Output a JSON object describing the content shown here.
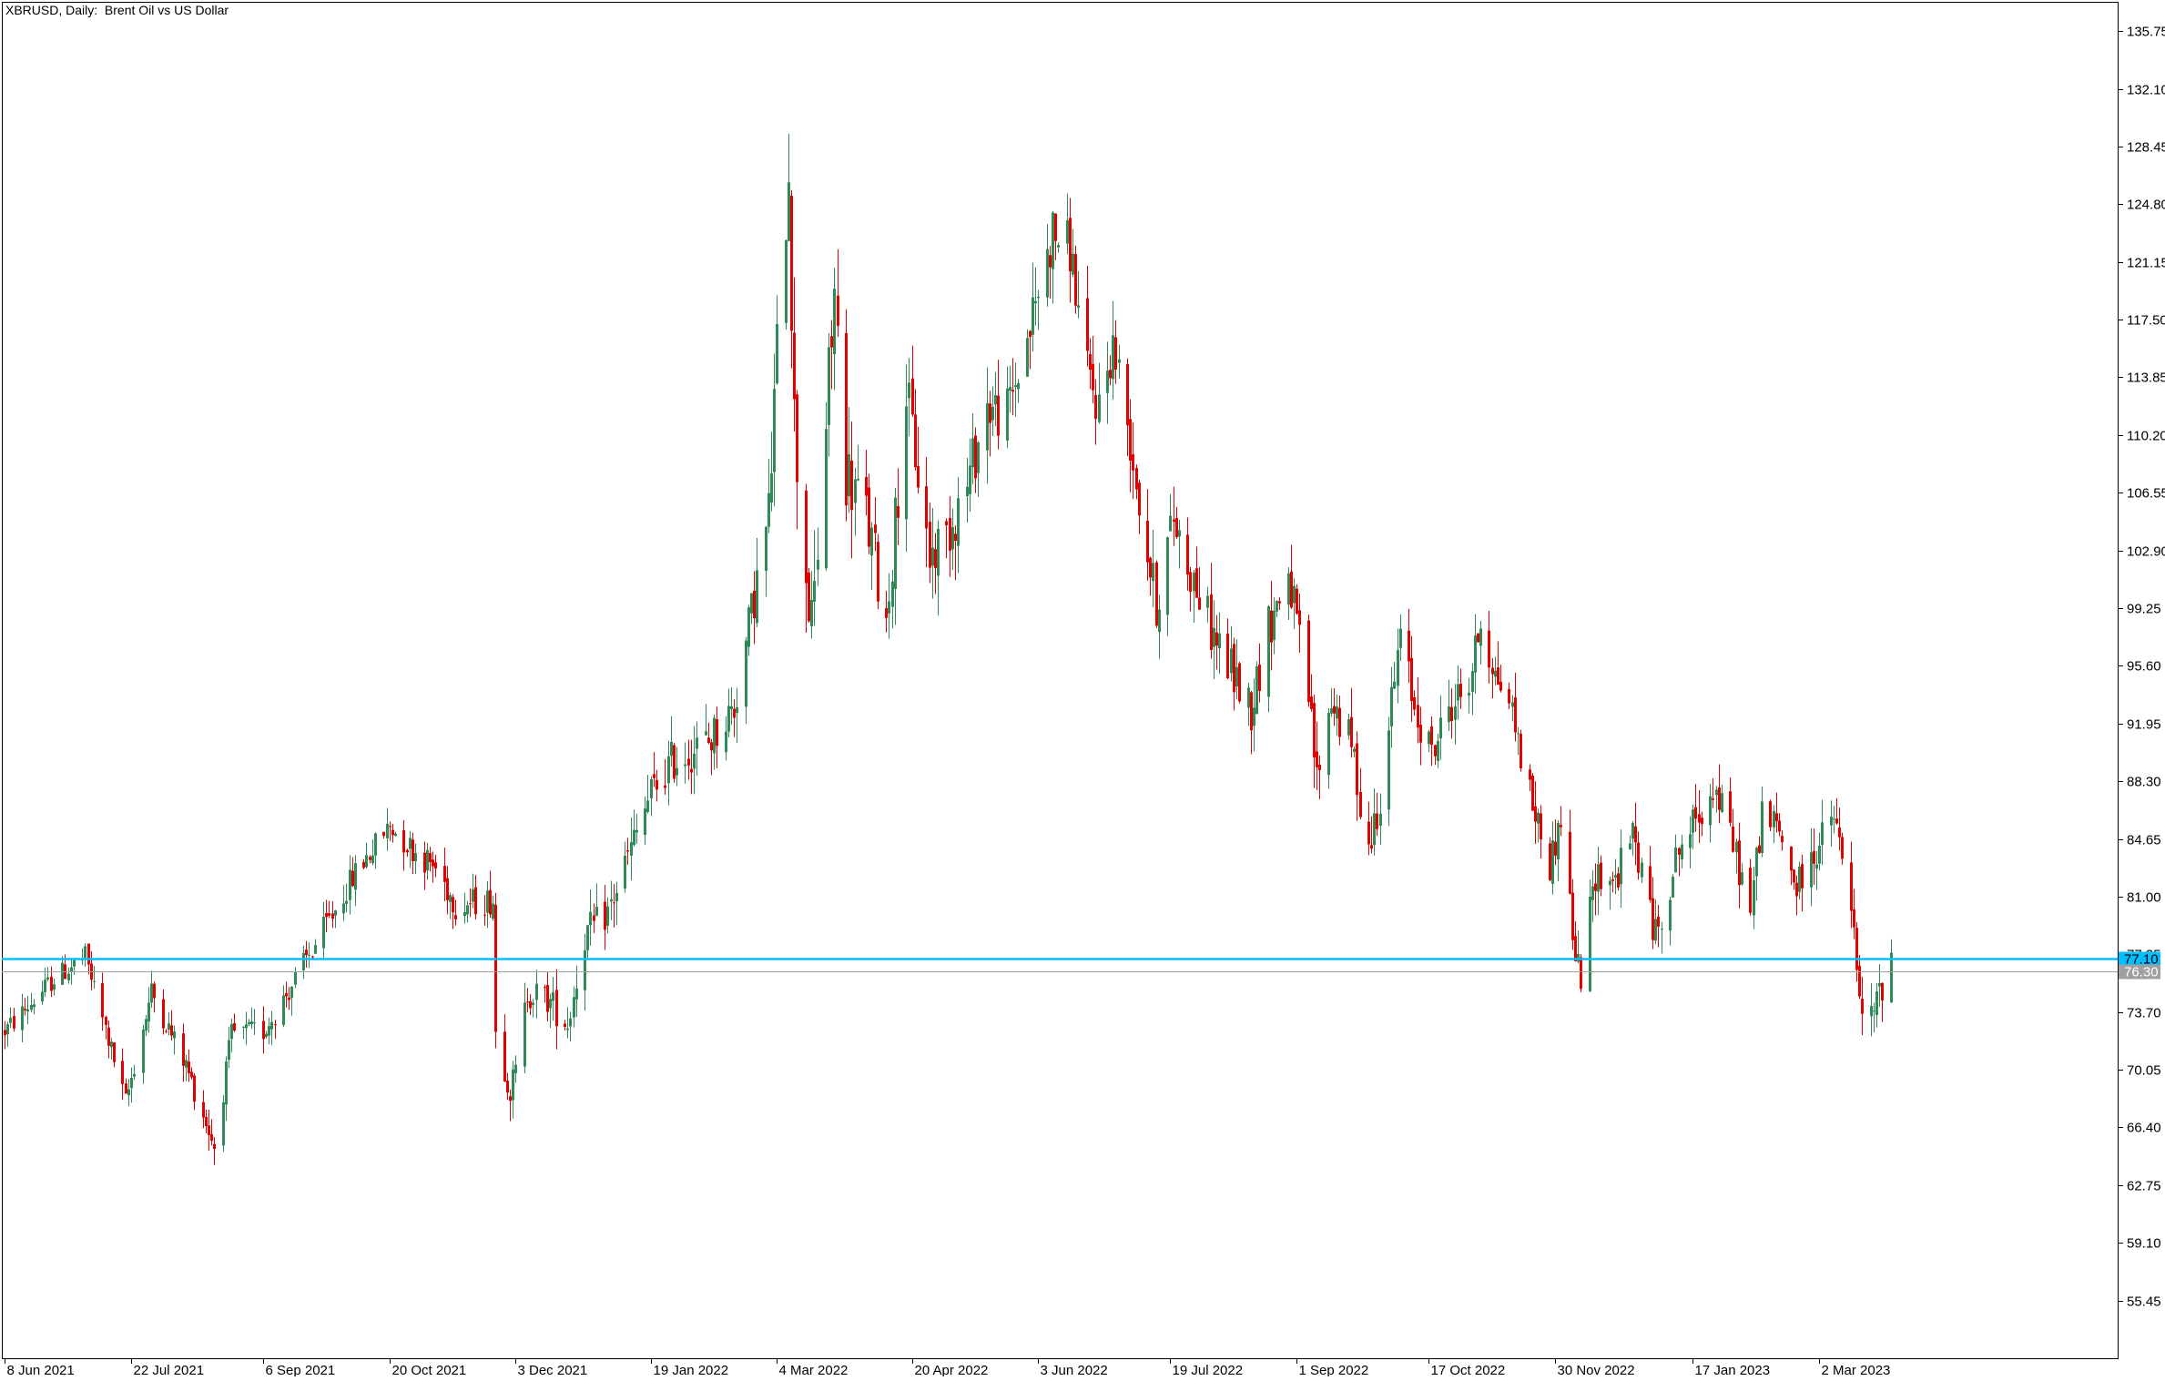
{
  "chart_data": {
    "type": "candlestick",
    "title": "XBRUSD, Daily:  Brent Oil vs US Dollar",
    "xlabel": "",
    "ylabel": "",
    "ylim": [
      51.8,
      137.6
    ],
    "y_ticks": [
      "135.75",
      "132.10",
      "128.45",
      "124.80",
      "121.15",
      "117.50",
      "113.85",
      "110.20",
      "106.55",
      "102.90",
      "99.25",
      "95.60",
      "91.95",
      "88.30",
      "84.65",
      "81.00",
      "77.35",
      "73.70",
      "70.05",
      "66.40",
      "62.75",
      "59.10",
      "55.45"
    ],
    "x_ticks": [
      {
        "label": "8 Jun 2021",
        "date": "2021-06-08"
      },
      {
        "label": "22 Jul 2021",
        "date": "2021-07-22"
      },
      {
        "label": "6 Sep 2021",
        "date": "2021-09-06"
      },
      {
        "label": "20 Oct 2021",
        "date": "2021-10-20"
      },
      {
        "label": "3 Dec 2021",
        "date": "2021-12-03"
      },
      {
        "label": "19 Jan 2022",
        "date": "2022-01-19"
      },
      {
        "label": "4 Mar 2022",
        "date": "2022-03-04"
      },
      {
        "label": "20 Apr 2022",
        "date": "2022-04-20"
      },
      {
        "label": "3 Jun 2022",
        "date": "2022-06-03"
      },
      {
        "label": "19 Jul 2022",
        "date": "2022-07-19"
      },
      {
        "label": "1 Sep 2022",
        "date": "2022-09-01"
      },
      {
        "label": "17 Oct 2022",
        "date": "2022-10-17"
      },
      {
        "label": "30 Nov 2022",
        "date": "2022-11-30"
      },
      {
        "label": "17 Jan 2023",
        "date": "2023-01-17"
      },
      {
        "label": "2 Mar 2023",
        "date": "2023-03-02"
      }
    ],
    "x_range": [
      "2021-06-07",
      "2023-06-14"
    ],
    "horizontal_lines": [
      {
        "value": 77.1,
        "label": "77.10",
        "color": "#00bfff",
        "kind": "level"
      },
      {
        "value": 76.3,
        "label": "76.30",
        "color": "#a0a0a0",
        "kind": "bid"
      }
    ],
    "colors": {
      "up": "#2e8b57",
      "down": "#e00000",
      "axis": "#000000"
    },
    "path_points": [
      [
        "2021-06-08",
        72.5
      ],
      [
        "2021-06-25",
        75.8
      ],
      [
        "2021-07-06",
        77.2
      ],
      [
        "2021-07-20",
        68.0
      ],
      [
        "2021-07-29",
        75.0
      ],
      [
        "2021-08-10",
        70.3
      ],
      [
        "2021-08-20",
        65.2
      ],
      [
        "2021-08-26",
        72.3
      ],
      [
        "2021-09-06",
        72.5
      ],
      [
        "2021-09-14",
        74.8
      ],
      [
        "2021-09-28",
        79.2
      ],
      [
        "2021-10-08",
        82.5
      ],
      [
        "2021-10-20",
        85.5
      ],
      [
        "2021-10-28",
        84.0
      ],
      [
        "2021-11-05",
        82.8
      ],
      [
        "2021-11-12",
        80.5
      ],
      [
        "2021-11-25",
        80.8
      ],
      [
        "2021-11-26",
        72.5
      ],
      [
        "2021-12-01",
        68.8
      ],
      [
        "2021-12-03",
        69.8
      ],
      [
        "2021-12-07",
        75.0
      ],
      [
        "2021-12-14",
        74.5
      ],
      [
        "2021-12-21",
        73.0
      ],
      [
        "2021-12-27",
        78.5
      ],
      [
        "2022-01-04",
        80.0
      ],
      [
        "2022-01-12",
        84.0
      ],
      [
        "2022-01-19",
        87.5
      ],
      [
        "2022-01-26",
        89.5
      ],
      [
        "2022-02-08",
        90.8
      ],
      [
        "2022-02-17",
        93.0
      ],
      [
        "2022-02-24",
        100.0
      ],
      [
        "2022-03-01",
        105.0
      ],
      [
        "2022-03-03",
        112.0
      ],
      [
        "2022-03-08",
        128.0
      ],
      [
        "2022-03-10",
        111.0
      ],
      [
        "2022-03-16",
        97.5
      ],
      [
        "2022-03-24",
        119.0
      ],
      [
        "2022-03-28",
        108.0
      ],
      [
        "2022-04-04",
        105.0
      ],
      [
        "2022-04-11",
        98.5
      ],
      [
        "2022-04-18",
        113.0
      ],
      [
        "2022-04-26",
        102.5
      ],
      [
        "2022-05-02",
        104.0
      ],
      [
        "2022-05-09",
        107.0
      ],
      [
        "2022-05-16",
        112.0
      ],
      [
        "2022-05-23",
        111.5
      ],
      [
        "2022-05-31",
        117.0
      ],
      [
        "2022-06-08",
        123.0
      ],
      [
        "2022-06-14",
        122.0
      ],
      [
        "2022-06-20",
        114.0
      ],
      [
        "2022-06-24",
        112.0
      ],
      [
        "2022-06-29",
        116.0
      ],
      [
        "2022-07-05",
        110.0
      ],
      [
        "2022-07-08",
        106.0
      ],
      [
        "2022-07-14",
        99.5
      ],
      [
        "2022-07-20",
        105.0
      ],
      [
        "2022-07-27",
        101.0
      ],
      [
        "2022-08-03",
        97.5
      ],
      [
        "2022-08-10",
        95.0
      ],
      [
        "2022-08-16",
        93.0
      ],
      [
        "2022-08-22",
        98.0
      ],
      [
        "2022-08-29",
        101.5
      ],
      [
        "2022-09-05",
        93.5
      ],
      [
        "2022-09-08",
        88.5
      ],
      [
        "2022-09-13",
        93.5
      ],
      [
        "2022-09-20",
        90.5
      ],
      [
        "2022-09-26",
        84.0
      ],
      [
        "2022-09-30",
        87.5
      ],
      [
        "2022-10-07",
        97.5
      ],
      [
        "2022-10-12",
        93.0
      ],
      [
        "2022-10-18",
        90.0
      ],
      [
        "2022-10-24",
        93.0
      ],
      [
        "2022-10-31",
        94.5
      ],
      [
        "2022-11-04",
        98.5
      ],
      [
        "2022-11-09",
        95.0
      ],
      [
        "2022-11-14",
        93.5
      ],
      [
        "2022-11-21",
        87.5
      ],
      [
        "2022-11-28",
        83.0
      ],
      [
        "2022-12-02",
        86.0
      ],
      [
        "2022-12-07",
        77.0
      ],
      [
        "2022-12-09",
        76.0
      ],
      [
        "2022-12-14",
        82.5
      ],
      [
        "2022-12-21",
        82.0
      ],
      [
        "2022-12-27",
        85.0
      ],
      [
        "2023-01-04",
        78.5
      ],
      [
        "2023-01-12",
        84.0
      ],
      [
        "2023-01-18",
        85.8
      ],
      [
        "2023-01-24",
        88.0
      ],
      [
        "2023-01-30",
        85.0
      ],
      [
        "2023-02-06",
        80.0
      ],
      [
        "2023-02-10",
        86.5
      ],
      [
        "2023-02-16",
        85.0
      ],
      [
        "2023-02-22",
        81.5
      ],
      [
        "2023-03-01",
        84.0
      ],
      [
        "2023-03-07",
        86.0
      ],
      [
        "2023-03-13",
        80.5
      ],
      [
        "2023-03-16",
        74.0
      ],
      [
        "2023-03-20",
        73.2
      ],
      [
        "2023-03-24",
        75.5
      ],
      [
        "2023-03-27",
        77.5
      ]
    ],
    "range_points": [
      [
        "2021-06-08",
        1.5
      ],
      [
        "2021-12-01",
        2.2
      ],
      [
        "2022-02-24",
        3.5
      ],
      [
        "2022-03-08",
        7.0
      ],
      [
        "2022-04-10",
        4.5
      ],
      [
        "2022-06-20",
        3.8
      ],
      [
        "2022-08-01",
        3.6
      ],
      [
        "2022-10-01",
        3.0
      ],
      [
        "2022-12-10",
        2.6
      ],
      [
        "2023-03-27",
        2.6
      ]
    ]
  }
}
